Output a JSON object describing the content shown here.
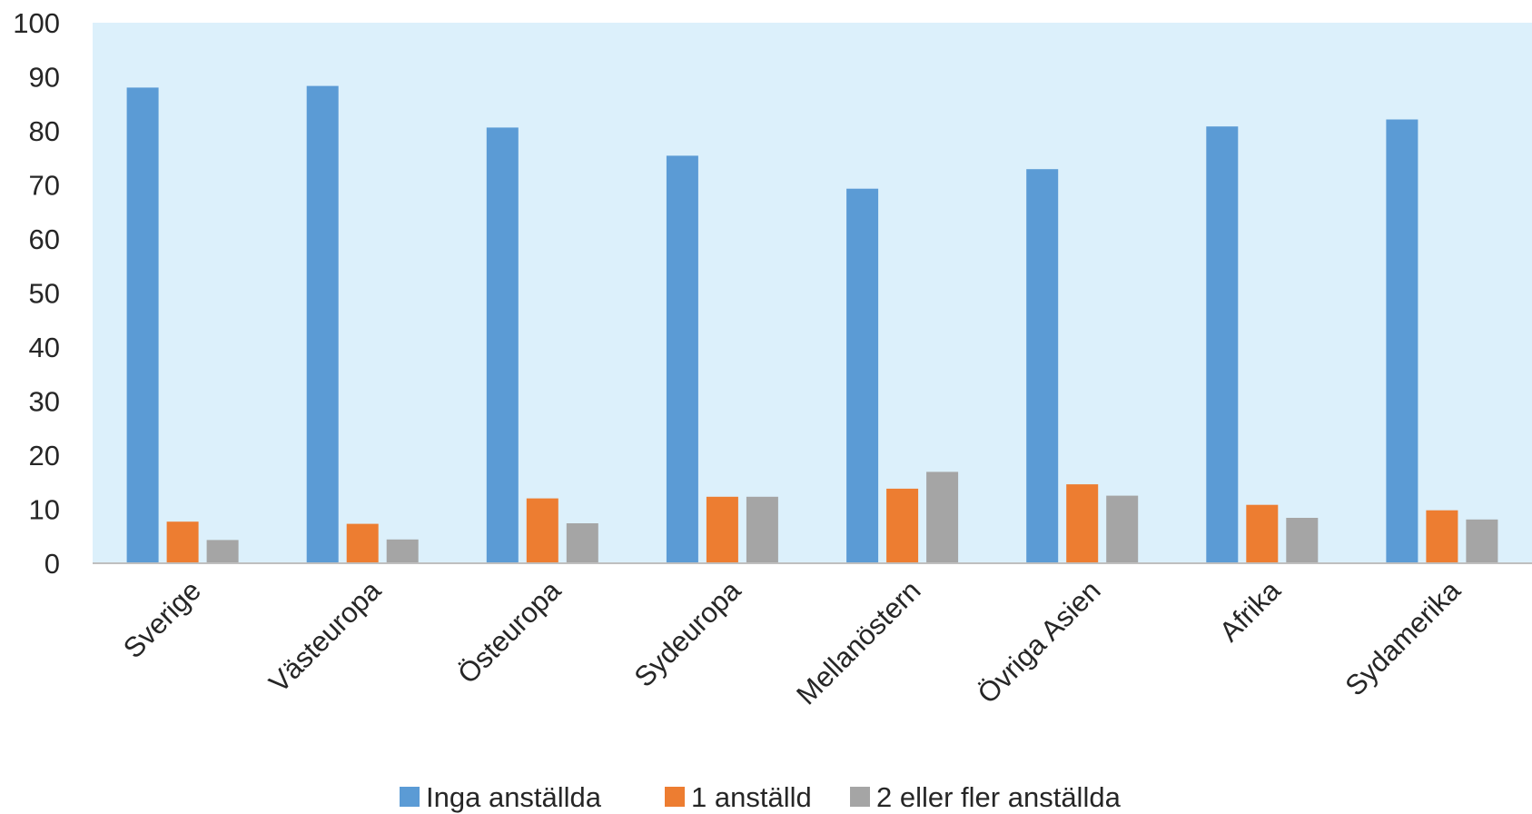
{
  "chart_data": {
    "type": "bar",
    "title": "",
    "xlabel": "",
    "ylabel": "",
    "ylim": [
      0,
      100
    ],
    "yticks": [
      0,
      10,
      20,
      30,
      40,
      50,
      60,
      70,
      80,
      90,
      100
    ],
    "grid": false,
    "legend_position": "bottom",
    "plot_background": "#dcf0fb",
    "categories": [
      "Sverige",
      "Västeuropa",
      "Östeuropa",
      "Sydeuropa",
      "Mellanöstern",
      "Övriga Asien",
      "Afrika",
      "Sydamerika"
    ],
    "series": [
      {
        "name": "Inga anställda",
        "color": "#5b9bd5",
        "values": [
          88.0,
          88.3,
          80.6,
          75.4,
          69.3,
          72.9,
          80.8,
          82.1
        ]
      },
      {
        "name": "1 anställd",
        "color": "#ed7d31",
        "values": [
          7.7,
          7.3,
          12.0,
          12.3,
          13.8,
          14.6,
          10.8,
          9.8
        ]
      },
      {
        "name": "2 eller fler anställda",
        "color": "#a5a5a5",
        "values": [
          4.3,
          4.4,
          7.4,
          12.3,
          16.9,
          12.5,
          8.4,
          8.1
        ]
      }
    ]
  }
}
